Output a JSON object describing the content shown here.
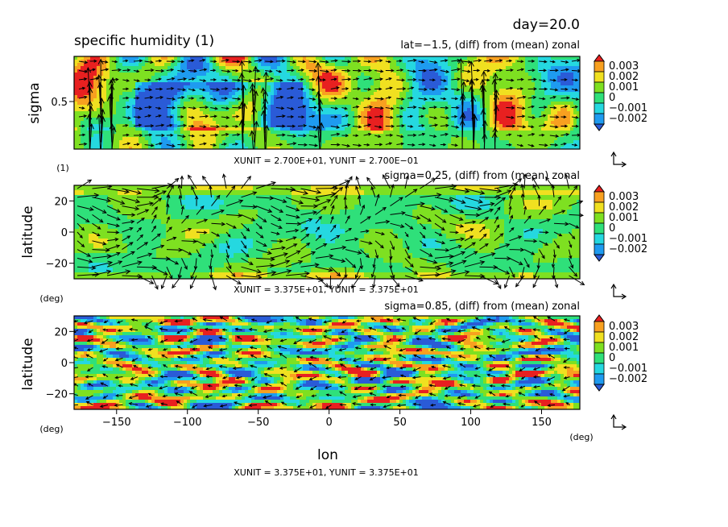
{
  "header": {
    "day_label": "day=20.0",
    "variable_label": "specific humidity (1)"
  },
  "colors": {
    "levels": [
      "#2a5bd7",
      "#1e9bf0",
      "#25d8e0",
      "#2fe07a",
      "#7ee021",
      "#f0e020",
      "#f8a020",
      "#e82020"
    ],
    "arrow": "#000000",
    "frame": "#000000"
  },
  "colorbar": {
    "tick_labels": [
      "0.003",
      "0.002",
      "0.001",
      "0",
      "−0.001",
      "−0.002"
    ]
  },
  "chart_data": [
    {
      "type": "heatmap",
      "panel": "top",
      "title": "lat=−1.5, (diff) from (mean) zonal",
      "xlabel": "",
      "ylabel": "sigma",
      "ylabel_unit": "(1)",
      "yticks": [
        "0.5"
      ],
      "xlim": [
        -180,
        177
      ],
      "ylim": [
        0,
        1
      ],
      "vector_unit_text": "XUNIT = 2.700E+01, YUNIT = 2.700E−01",
      "colorbar_levels": [
        -0.002,
        -0.001,
        0,
        0.001,
        0.002,
        0.003
      ]
    },
    {
      "type": "heatmap",
      "panel": "middle",
      "title": "sigma=0.25, (diff) from (mean) zonal",
      "xlabel": "",
      "ylabel": "latitude",
      "ylabel_unit": "(deg)",
      "yticks": [
        "20",
        "0",
        "−20"
      ],
      "xlim": [
        -180,
        177
      ],
      "ylim": [
        -30,
        30
      ],
      "vector_unit_text": "XUNIT = 3.375E+01, YUNIT = 3.375E+01",
      "colorbar_levels": [
        -0.002,
        -0.001,
        0,
        0.001,
        0.002,
        0.003
      ]
    },
    {
      "type": "heatmap",
      "panel": "bottom",
      "title": "sigma=0.85, (diff) from (mean) zonal",
      "xlabel": "lon",
      "xlabel_unit": "(deg)",
      "ylabel": "latitude",
      "ylabel_unit": "(deg)",
      "xticks": [
        "−150",
        "−100",
        "−50",
        "0",
        "50",
        "100",
        "150"
      ],
      "yticks": [
        "20",
        "0",
        "−20"
      ],
      "xlim": [
        -180,
        177
      ],
      "ylim": [
        -30,
        30
      ],
      "vector_unit_text": "XUNIT = 3.375E+01, YUNIT = 3.375E+01",
      "colorbar_levels": [
        -0.002,
        -0.001,
        0,
        0.001,
        0.002,
        0.003
      ]
    }
  ]
}
